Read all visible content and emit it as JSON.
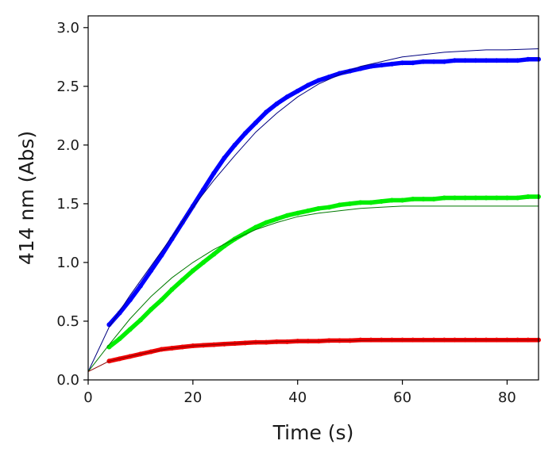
{
  "chart_data": {
    "type": "scatter",
    "title": "",
    "xlabel": "Time (s)",
    "ylabel": "414 nm (Abs)",
    "xlim": [
      0,
      86
    ],
    "ylim": [
      0,
      3.1
    ],
    "xticks": [
      0,
      20,
      40,
      60,
      80
    ],
    "yticks": [
      0.0,
      0.5,
      1.0,
      1.5,
      2.0,
      2.5,
      3.0
    ],
    "xtick_labels": [
      "0",
      "20",
      "40",
      "60",
      "80"
    ],
    "ytick_labels": [
      "0.0",
      "0.5",
      "1.0",
      "1.5",
      "2.0",
      "2.5",
      "3.0"
    ],
    "grid": false,
    "legend": "none",
    "series": [
      {
        "color": "#0000ff",
        "x": [
          4,
          6,
          8,
          10,
          12,
          14,
          16,
          18,
          20,
          22,
          24,
          26,
          28,
          30,
          32,
          34,
          36,
          38,
          40,
          42,
          44,
          46,
          48,
          50,
          52,
          54,
          56,
          58,
          60,
          62,
          64,
          66,
          68,
          70,
          72,
          74,
          76,
          78,
          80,
          82,
          84,
          86
        ],
        "y": [
          0.47,
          0.57,
          0.68,
          0.8,
          0.93,
          1.06,
          1.2,
          1.34,
          1.48,
          1.62,
          1.76,
          1.89,
          2.0,
          2.1,
          2.19,
          2.28,
          2.35,
          2.41,
          2.46,
          2.51,
          2.55,
          2.58,
          2.61,
          2.63,
          2.65,
          2.67,
          2.68,
          2.69,
          2.7,
          2.7,
          2.71,
          2.71,
          2.71,
          2.72,
          2.72,
          2.72,
          2.72,
          2.72,
          2.72,
          2.72,
          2.73,
          2.73
        ],
        "fit": {
          "x": [
            0,
            4,
            8,
            12,
            16,
            20,
            24,
            28,
            32,
            36,
            40,
            44,
            48,
            52,
            56,
            60,
            64,
            68,
            72,
            76,
            80,
            86
          ],
          "y": [
            0.07,
            0.45,
            0.72,
            0.97,
            1.22,
            1.47,
            1.7,
            1.91,
            2.11,
            2.27,
            2.41,
            2.52,
            2.6,
            2.67,
            2.71,
            2.75,
            2.77,
            2.79,
            2.8,
            2.81,
            2.81,
            2.82
          ]
        }
      },
      {
        "color": "#00ee00",
        "x": [
          4,
          6,
          8,
          10,
          12,
          14,
          16,
          18,
          20,
          22,
          24,
          26,
          28,
          30,
          32,
          34,
          36,
          38,
          40,
          42,
          44,
          46,
          48,
          50,
          52,
          54,
          56,
          58,
          60,
          62,
          64,
          66,
          68,
          70,
          72,
          74,
          76,
          78,
          80,
          82,
          84,
          86
        ],
        "y": [
          0.28,
          0.35,
          0.43,
          0.51,
          0.6,
          0.68,
          0.77,
          0.85,
          0.93,
          1.0,
          1.07,
          1.14,
          1.2,
          1.25,
          1.3,
          1.34,
          1.37,
          1.4,
          1.42,
          1.44,
          1.46,
          1.47,
          1.49,
          1.5,
          1.51,
          1.51,
          1.52,
          1.53,
          1.53,
          1.54,
          1.54,
          1.54,
          1.55,
          1.55,
          1.55,
          1.55,
          1.55,
          1.55,
          1.55,
          1.55,
          1.56,
          1.56
        ],
        "fit": {
          "x": [
            0,
            4,
            8,
            12,
            16,
            20,
            24,
            28,
            32,
            36,
            40,
            44,
            48,
            52,
            56,
            60,
            64,
            68,
            72,
            76,
            80,
            86
          ],
          "y": [
            0.07,
            0.3,
            0.52,
            0.71,
            0.87,
            1.0,
            1.11,
            1.2,
            1.28,
            1.34,
            1.39,
            1.42,
            1.44,
            1.46,
            1.47,
            1.48,
            1.48,
            1.48,
            1.48,
            1.48,
            1.48,
            1.48
          ]
        }
      },
      {
        "color": "#ee0000",
        "x": [
          4,
          6,
          8,
          10,
          12,
          14,
          16,
          18,
          20,
          22,
          24,
          26,
          28,
          30,
          32,
          34,
          36,
          38,
          40,
          42,
          44,
          46,
          48,
          50,
          52,
          54,
          56,
          58,
          60,
          62,
          64,
          66,
          68,
          70,
          72,
          74,
          76,
          78,
          80,
          82,
          84,
          86
        ],
        "y": [
          0.16,
          0.18,
          0.2,
          0.22,
          0.24,
          0.26,
          0.27,
          0.28,
          0.29,
          0.295,
          0.3,
          0.305,
          0.31,
          0.315,
          0.32,
          0.32,
          0.325,
          0.325,
          0.33,
          0.33,
          0.33,
          0.335,
          0.335,
          0.335,
          0.34,
          0.34,
          0.34,
          0.34,
          0.34,
          0.34,
          0.34,
          0.34,
          0.34,
          0.34,
          0.34,
          0.34,
          0.34,
          0.34,
          0.34,
          0.34,
          0.34,
          0.34
        ],
        "fit": {
          "x": [
            0,
            4,
            8,
            12,
            16,
            20,
            24,
            28,
            32,
            36,
            40,
            44,
            48,
            52,
            56,
            60,
            64,
            68,
            72,
            76,
            80,
            86
          ],
          "y": [
            0.07,
            0.16,
            0.2,
            0.24,
            0.27,
            0.29,
            0.3,
            0.31,
            0.32,
            0.325,
            0.33,
            0.33,
            0.335,
            0.335,
            0.34,
            0.34,
            0.34,
            0.34,
            0.34,
            0.34,
            0.34,
            0.34
          ]
        }
      }
    ]
  }
}
